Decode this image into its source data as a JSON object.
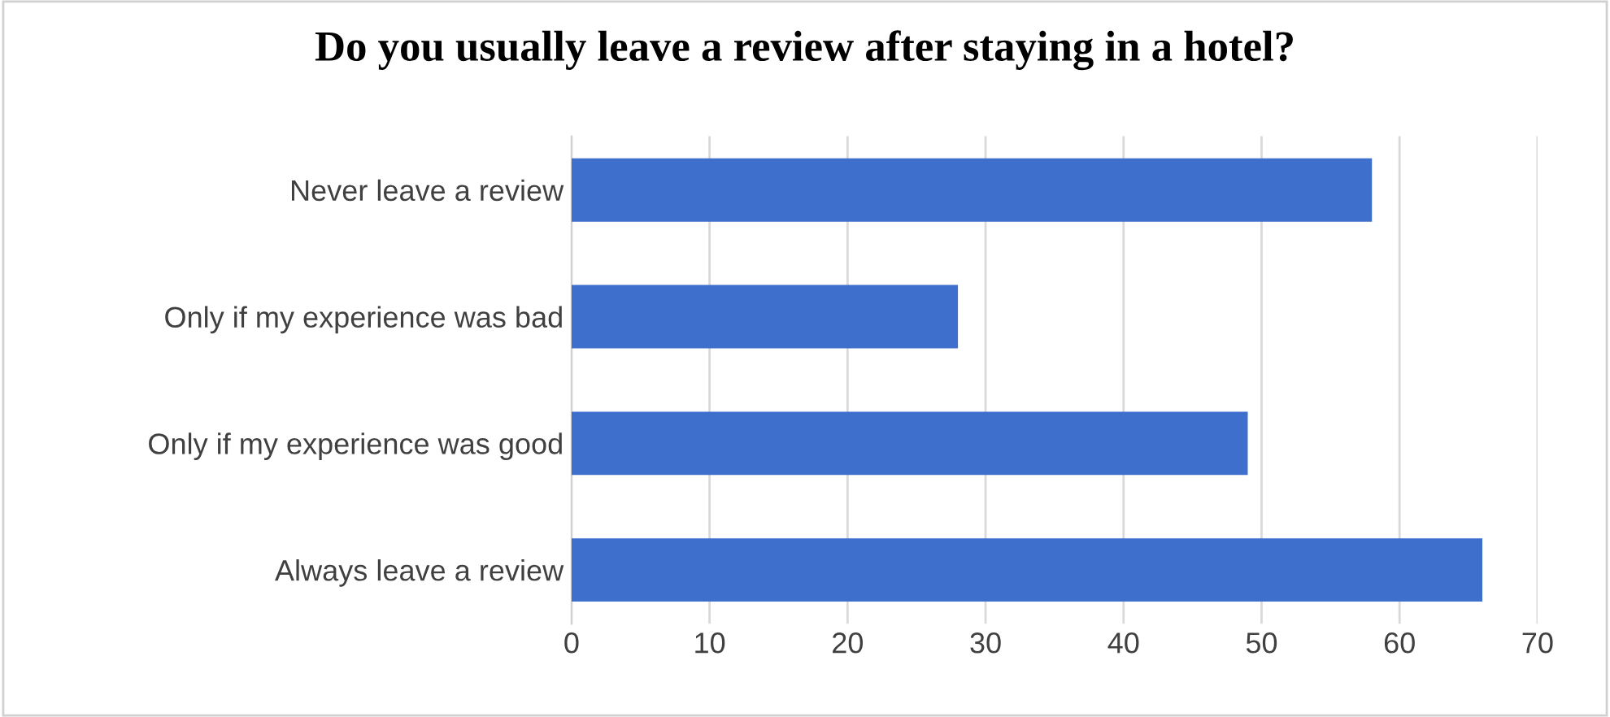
{
  "chart_data": {
    "type": "bar",
    "orientation": "horizontal",
    "title": "Do you usually leave a review after staying in a hotel?",
    "categories": [
      "Never leave a review",
      "Only if my experience was bad",
      "Only if my experience was good",
      "Always leave a review"
    ],
    "values": [
      58,
      28,
      49,
      66
    ],
    "color": "#3f6fcc",
    "xlim": [
      0,
      70
    ],
    "xticks": [
      0,
      10,
      20,
      30,
      40,
      50,
      60,
      70
    ],
    "grid": "x",
    "legend": false
  }
}
